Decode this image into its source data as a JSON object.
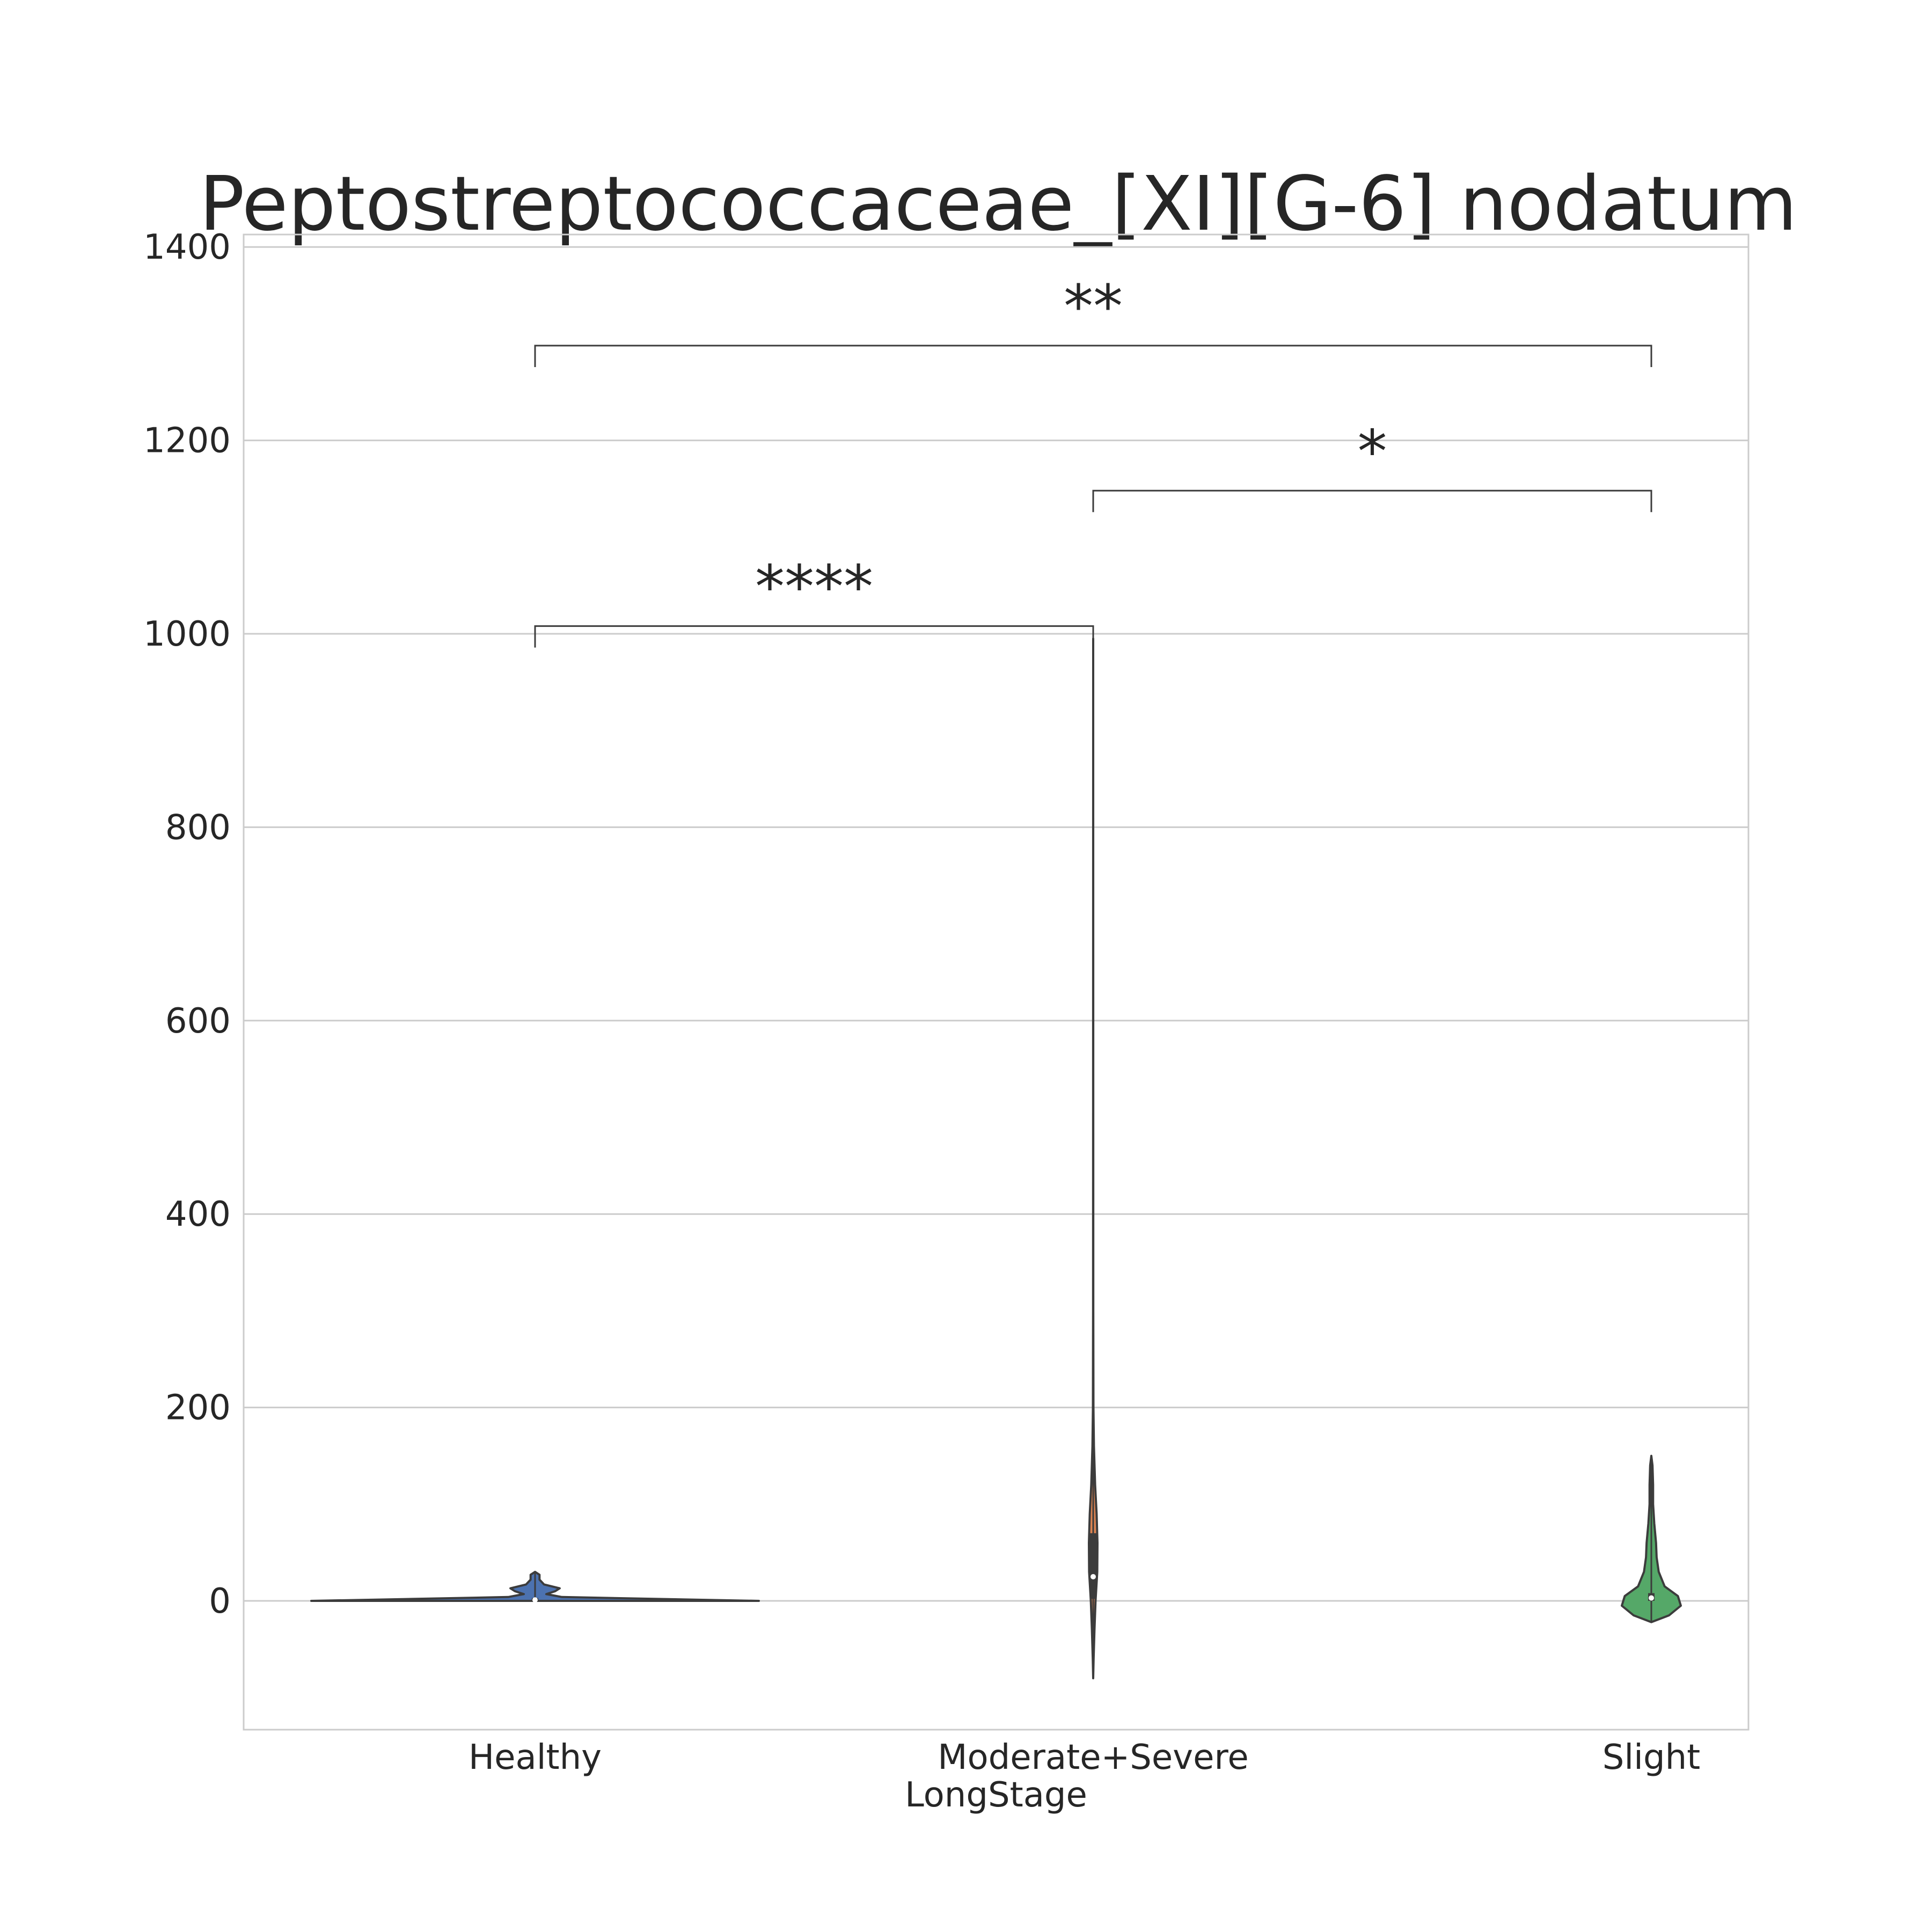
{
  "chart_data": {
    "type": "violin",
    "title": "Peptostreptococcaceae_[XI][G-6] nodatum",
    "xlabel": "LongStage",
    "ylabel": "",
    "categories": [
      "Healthy",
      "Moderate+Severe",
      "Slight"
    ],
    "ylim": [
      -265,
      1415
    ],
    "yticks": [
      0,
      200,
      400,
      600,
      800,
      1000,
      1200,
      1400
    ],
    "grid": true,
    "colors": {
      "Healthy": "#4c72b0",
      "Moderate+Severe": "#dd8452",
      "Slight": "#55a868",
      "outline": "#3c3c3c",
      "grid": "#cccccc"
    },
    "violins": [
      {
        "category": "Healthy",
        "y_min": 0,
        "y_max": 30,
        "median": 1,
        "q1": 0,
        "q3": 3,
        "profile": [
          [
            0,
            1.0
          ],
          [
            2,
            0.55
          ],
          [
            4,
            0.12
          ],
          [
            7,
            0.05
          ],
          [
            10,
            0.09
          ],
          [
            13,
            0.11
          ],
          [
            17,
            0.04
          ],
          [
            22,
            0.02
          ],
          [
            27,
            0.02
          ],
          [
            30,
            0.0
          ]
        ]
      },
      {
        "category": "Moderate+Severe",
        "y_min": -80,
        "y_max": 995,
        "median": 25,
        "q1": 2,
        "q3": 70,
        "profile": [
          [
            -80,
            0.0
          ],
          [
            -60,
            0.1
          ],
          [
            -30,
            0.3
          ],
          [
            0,
            0.55
          ],
          [
            30,
            0.95
          ],
          [
            60,
            1.0
          ],
          [
            90,
            0.8
          ],
          [
            120,
            0.45
          ],
          [
            160,
            0.18
          ],
          [
            200,
            0.06
          ],
          [
            300,
            0.02
          ],
          [
            995,
            0.0
          ]
        ]
      },
      {
        "category": "Slight",
        "y_min": -22,
        "y_max": 150,
        "median": 3,
        "q1": 0,
        "q3": 8,
        "profile": [
          [
            -22,
            0.0
          ],
          [
            -15,
            0.6
          ],
          [
            -5,
            1.0
          ],
          [
            5,
            0.9
          ],
          [
            15,
            0.45
          ],
          [
            30,
            0.25
          ],
          [
            45,
            0.18
          ],
          [
            60,
            0.16
          ],
          [
            80,
            0.1
          ],
          [
            100,
            0.06
          ],
          [
            120,
            0.06
          ],
          [
            140,
            0.04
          ],
          [
            150,
            0.0
          ]
        ]
      }
    ],
    "annotations": [
      {
        "from": "Healthy",
        "to": "Moderate+Severe",
        "y": 1008,
        "label": "****"
      },
      {
        "from": "Moderate+Severe",
        "to": "Slight",
        "y": 1148,
        "label": "*"
      },
      {
        "from": "Healthy",
        "to": "Slight",
        "y": 1298,
        "label": "**"
      }
    ]
  }
}
